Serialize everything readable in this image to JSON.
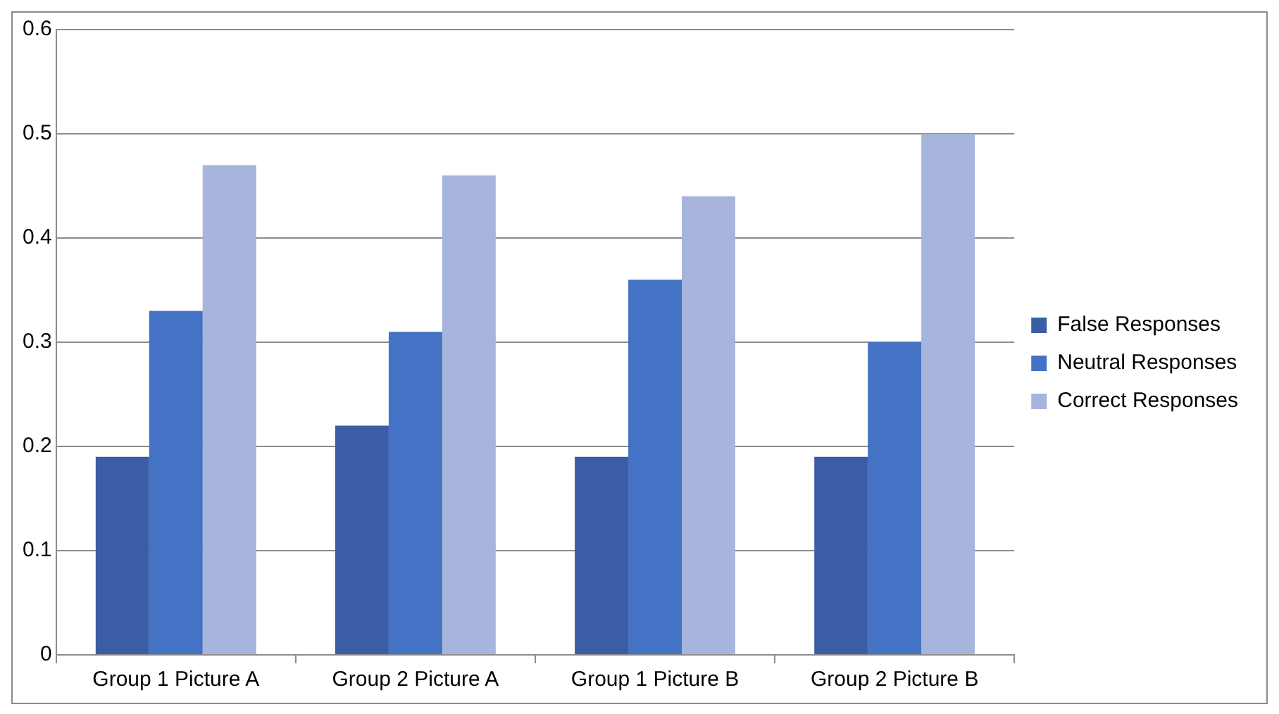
{
  "chart_data": {
    "type": "bar",
    "categories": [
      "Group 1 Picture A",
      "Group 2 Picture A",
      "Group 1 Picture B",
      "Group 2 Picture B"
    ],
    "series": [
      {
        "name": "False Responses",
        "color": "#3a5da5",
        "values": [
          0.19,
          0.22,
          0.19,
          0.19
        ]
      },
      {
        "name": "Neutral Responses",
        "color": "#4472c4",
        "values": [
          0.33,
          0.31,
          0.36,
          0.3
        ]
      },
      {
        "name": "Correct Responses",
        "color": "#a7b5dc",
        "values": [
          0.47,
          0.46,
          0.44,
          0.5
        ]
      }
    ],
    "ylim": [
      0,
      0.6
    ],
    "yticks": [
      0,
      0.1,
      0.2,
      0.3,
      0.4,
      0.5,
      0.6
    ],
    "grid": "y",
    "legend": "right"
  }
}
